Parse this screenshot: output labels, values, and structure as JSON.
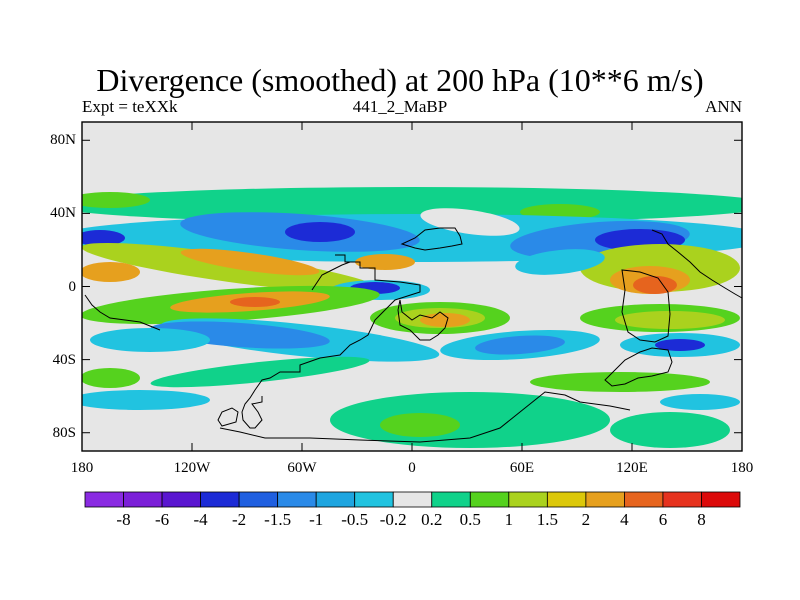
{
  "header": {
    "title": "Divergence (smoothed) at 200 hPa (10**6 m/s)",
    "left_label": "Expt = teXXk",
    "center_label": "441_2_MaBP",
    "right_label": "ANN"
  },
  "axes": {
    "y_ticks": [
      {
        "lat": 80,
        "label": "80N"
      },
      {
        "lat": 40,
        "label": "40N"
      },
      {
        "lat": 0,
        "label": "0"
      },
      {
        "lat": -40,
        "label": "40S"
      },
      {
        "lat": -80,
        "label": "80S"
      }
    ],
    "x_ticks": [
      {
        "lon": -180,
        "label": "180"
      },
      {
        "lon": -120,
        "label": "120W"
      },
      {
        "lon": -60,
        "label": "60W"
      },
      {
        "lon": 0,
        "label": "0"
      },
      {
        "lon": 60,
        "label": "60E"
      },
      {
        "lon": 120,
        "label": "120E"
      },
      {
        "lon": 180,
        "label": "180"
      }
    ],
    "lon_range": [
      -180,
      180
    ],
    "lat_range": [
      -90,
      90
    ]
  },
  "colorbar": {
    "colors": [
      "#8a2be2",
      "#7b1fd8",
      "#5a16d0",
      "#1c2bd6",
      "#1f5fe0",
      "#2a8ae8",
      "#1ea5e0",
      "#21c3e0",
      "#e6e6e6",
      "#10d28a",
      "#55d21e",
      "#aad21e",
      "#dcc80a",
      "#e6a01e",
      "#e6641e",
      "#e6321e",
      "#dc0a0a"
    ],
    "labels": [
      "-8",
      "-6",
      "-4",
      "-2",
      "-1.5",
      "-1",
      "-0.5",
      "-0.2",
      "0.2",
      "0.5",
      "1",
      "1.5",
      "2",
      "4",
      "6",
      "8"
    ]
  },
  "field_colors": {
    "neutral": "#e6e6e6",
    "strong_neg": "#1c2bd6",
    "neg": "#2a8ae8",
    "weak_neg": "#21c3e0",
    "weak_pos": "#10d28a",
    "pos": "#55d21e",
    "mod_pos": "#aad21e",
    "warm": "#e6a01e",
    "hot": "#e6641e"
  }
}
